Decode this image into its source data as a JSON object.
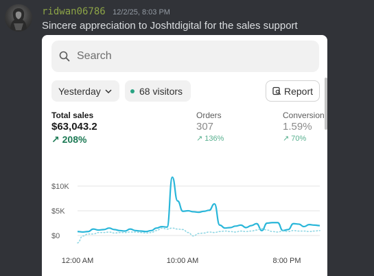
{
  "message": {
    "username": "ridwan06786",
    "timestamp": "12/2/25, 8:03 PM",
    "text": "Sincere appreciation to Joshtdigital for the sales support"
  },
  "embed": {
    "search": {
      "placeholder": "Search"
    },
    "filters": {
      "date_range": "Yesterday",
      "visitors": "68 visitors",
      "report_label": "Report"
    },
    "metrics": [
      {
        "label": "Total sales",
        "value": "$63,043.2",
        "change": "208%"
      },
      {
        "label": "Orders",
        "value": "307",
        "change": "136%"
      },
      {
        "label": "Conversion",
        "value": "1.59%",
        "change": "70%"
      }
    ],
    "colors": {
      "accent": "#29a383",
      "line": "#29b6d9",
      "positive": "#1d7a55"
    },
    "chart_data": {
      "type": "line",
      "y_tick_labels": [
        "$10K",
        "$5K",
        "$0"
      ],
      "ylim": [
        0,
        12000
      ],
      "x_tick_labels": [
        "12:00 AM",
        "10:00 AM",
        "8:00 PM"
      ],
      "grid": true,
      "series": [
        {
          "style": "solid",
          "x": [
            0,
            0.5,
            1,
            1.5,
            2,
            2.5,
            3,
            3.5,
            4,
            4.5,
            5,
            5.5,
            6,
            6.5,
            7,
            7.5,
            8,
            8.5,
            9,
            9.5,
            10,
            10.5,
            11,
            11.5,
            12,
            12.5,
            13,
            13.5,
            14,
            14.5,
            15,
            15.5,
            16,
            16.5,
            17,
            17.5,
            18,
            18.5,
            19,
            19.5,
            20,
            20.5,
            21,
            21.5,
            22,
            22.5,
            23
          ],
          "values": [
            800,
            700,
            800,
            1300,
            1100,
            1200,
            1500,
            1200,
            1000,
            900,
            1300,
            1000,
            900,
            800,
            1000,
            1500,
            1800,
            1700,
            11800,
            7000,
            4900,
            5000,
            4800,
            4700,
            4900,
            5100,
            6400,
            2100,
            1500,
            1600,
            1900,
            2100,
            1600,
            2000,
            2400,
            1000,
            2500,
            2600,
            2600,
            1000,
            1200,
            2400,
            2300,
            1800,
            2200,
            2100,
            2000
          ]
        },
        {
          "style": "dotted",
          "x": [
            0,
            0.5,
            1,
            1.5,
            2,
            2.5,
            3,
            3.5,
            4,
            4.5,
            5,
            5.5,
            6,
            6.5,
            7,
            7.5,
            8,
            8.5,
            9,
            9.5,
            10,
            10.5,
            11,
            11.5,
            12,
            12.5,
            13,
            13.5,
            14,
            14.5,
            15,
            15.5,
            16,
            16.5,
            17,
            17.5,
            18,
            18.5,
            19,
            19.5,
            20,
            20.5,
            21,
            21.5,
            22,
            22.5,
            23
          ],
          "values": [
            -1500,
            -100,
            300,
            300,
            600,
            600,
            700,
            500,
            600,
            600,
            700,
            700,
            600,
            500,
            600,
            1000,
            1500,
            1300,
            1500,
            1300,
            1200,
            600,
            -100,
            400,
            500,
            700,
            600,
            800,
            900,
            800,
            700,
            900,
            800,
            900,
            1100,
            1400,
            1100,
            800,
            700,
            900,
            800,
            1000,
            900,
            900,
            800,
            900,
            1000
          ]
        }
      ]
    }
  }
}
